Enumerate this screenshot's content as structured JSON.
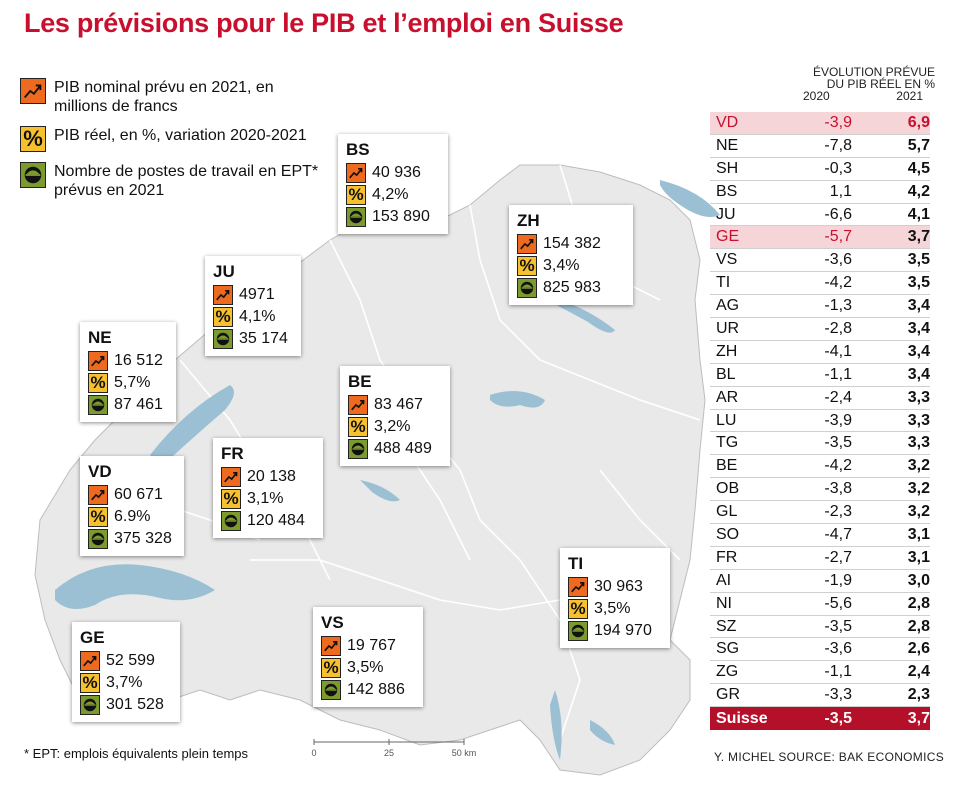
{
  "title": "Les prévisions pour le PIB et l’emploi en Suisse",
  "legend": [
    {
      "icon": "chart-up-icon",
      "text": "PIB nominal prévu en 2021, en millions de francs"
    },
    {
      "icon": "percent-icon",
      "text": "PIB réel, en %, variation 2020-2021"
    },
    {
      "icon": "worker-helmet-icon",
      "text": "Nombre de postes de travail en EPT* prévus en 2021"
    }
  ],
  "cantons": [
    {
      "name": "BS",
      "pib": "40 936",
      "pct": "4,2%",
      "jobs": "153 890"
    },
    {
      "name": "ZH",
      "pib": "154 382",
      "pct": "3,4%",
      "jobs": "825 983"
    },
    {
      "name": "JU",
      "pib": "4971",
      "pct": "4,1%",
      "jobs": "35 174"
    },
    {
      "name": "NE",
      "pib": "16 512",
      "pct": "5,7%",
      "jobs": "87 461"
    },
    {
      "name": "BE",
      "pib": "83 467",
      "pct": "3,2%",
      "jobs": "488 489"
    },
    {
      "name": "FR",
      "pib": "20 138",
      "pct": "3,1%",
      "jobs": "120 484"
    },
    {
      "name": "VD",
      "pib": "60 671",
      "pct": "6.9%",
      "jobs": "375 328"
    },
    {
      "name": "TI",
      "pib": "30 963",
      "pct": "3,5%",
      "jobs": "194 970"
    },
    {
      "name": "VS",
      "pib": "19 767",
      "pct": "3,5%",
      "jobs": "142 886"
    },
    {
      "name": "GE",
      "pib": "52 599",
      "pct": "3,7%",
      "jobs": "301 528"
    }
  ],
  "table": {
    "header": "ÉVOLUTION PRÉVUE DU PIB RÉEL EN %",
    "col_2020": "2020",
    "col_2021": "2021",
    "rows": [
      {
        "canton": "VD",
        "y2020": "-3,9",
        "y2021": "6,9",
        "highlight": "full"
      },
      {
        "canton": "NE",
        "y2020": "-7,8",
        "y2021": "5,7"
      },
      {
        "canton": "SH",
        "y2020": "-0,3",
        "y2021": "4,5"
      },
      {
        "canton": "BS",
        "y2020": "1,1",
        "y2021": "4,2"
      },
      {
        "canton": "JU",
        "y2020": "-6,6",
        "y2021": "4,1"
      },
      {
        "canton": "GE",
        "y2020": "-5,7",
        "y2021": "3,7",
        "highlight": "partial"
      },
      {
        "canton": "VS",
        "y2020": "-3,6",
        "y2021": "3,5"
      },
      {
        "canton": "TI",
        "y2020": "-4,2",
        "y2021": "3,5"
      },
      {
        "canton": "AG",
        "y2020": "-1,3",
        "y2021": "3,4"
      },
      {
        "canton": "UR",
        "y2020": "-2,8",
        "y2021": "3,4"
      },
      {
        "canton": "ZH",
        "y2020": "-4,1",
        "y2021": "3,4"
      },
      {
        "canton": "BL",
        "y2020": "-1,1",
        "y2021": "3,4"
      },
      {
        "canton": "AR",
        "y2020": "-2,4",
        "y2021": "3,3"
      },
      {
        "canton": "LU",
        "y2020": "-3,9",
        "y2021": "3,3"
      },
      {
        "canton": "TG",
        "y2020": "-3,5",
        "y2021": "3,3"
      },
      {
        "canton": "BE",
        "y2020": "-4,2",
        "y2021": "3,2"
      },
      {
        "canton": "OB",
        "y2020": "-3,8",
        "y2021": "3,2"
      },
      {
        "canton": "GL",
        "y2020": "-2,3",
        "y2021": "3,2"
      },
      {
        "canton": "SO",
        "y2020": "-4,7",
        "y2021": "3,1"
      },
      {
        "canton": "FR",
        "y2020": "-2,7",
        "y2021": "3,1"
      },
      {
        "canton": "AI",
        "y2020": "-1,9",
        "y2021": "3,0"
      },
      {
        "canton": "NI",
        "y2020": "-5,6",
        "y2021": "2,8"
      },
      {
        "canton": "SZ",
        "y2020": "-3,5",
        "y2021": "2,8"
      },
      {
        "canton": "SG",
        "y2020": "-3,6",
        "y2021": "2,6"
      },
      {
        "canton": "ZG",
        "y2020": "-1,1",
        "y2021": "2,4"
      },
      {
        "canton": "GR",
        "y2020": "-3,3",
        "y2021": "2,3"
      }
    ],
    "total": {
      "canton": "Suisse",
      "y2020": "-3,5",
      "y2021": "3,7"
    }
  },
  "scale": {
    "ticks": [
      "0",
      "25",
      "50 km"
    ]
  },
  "footnote": "* EPT: emplois équivalents plein temps",
  "credit": "Y. MICHEL   SOURCE: BAK ECONOMICS",
  "colors": {
    "title": "#c8102e",
    "pib_icon": "#ee6a1f",
    "pct_icon": "#f7c02e",
    "emp_icon": "#7d9a2f",
    "lake": "#9cc0d3",
    "land": "#e9e9e9"
  }
}
